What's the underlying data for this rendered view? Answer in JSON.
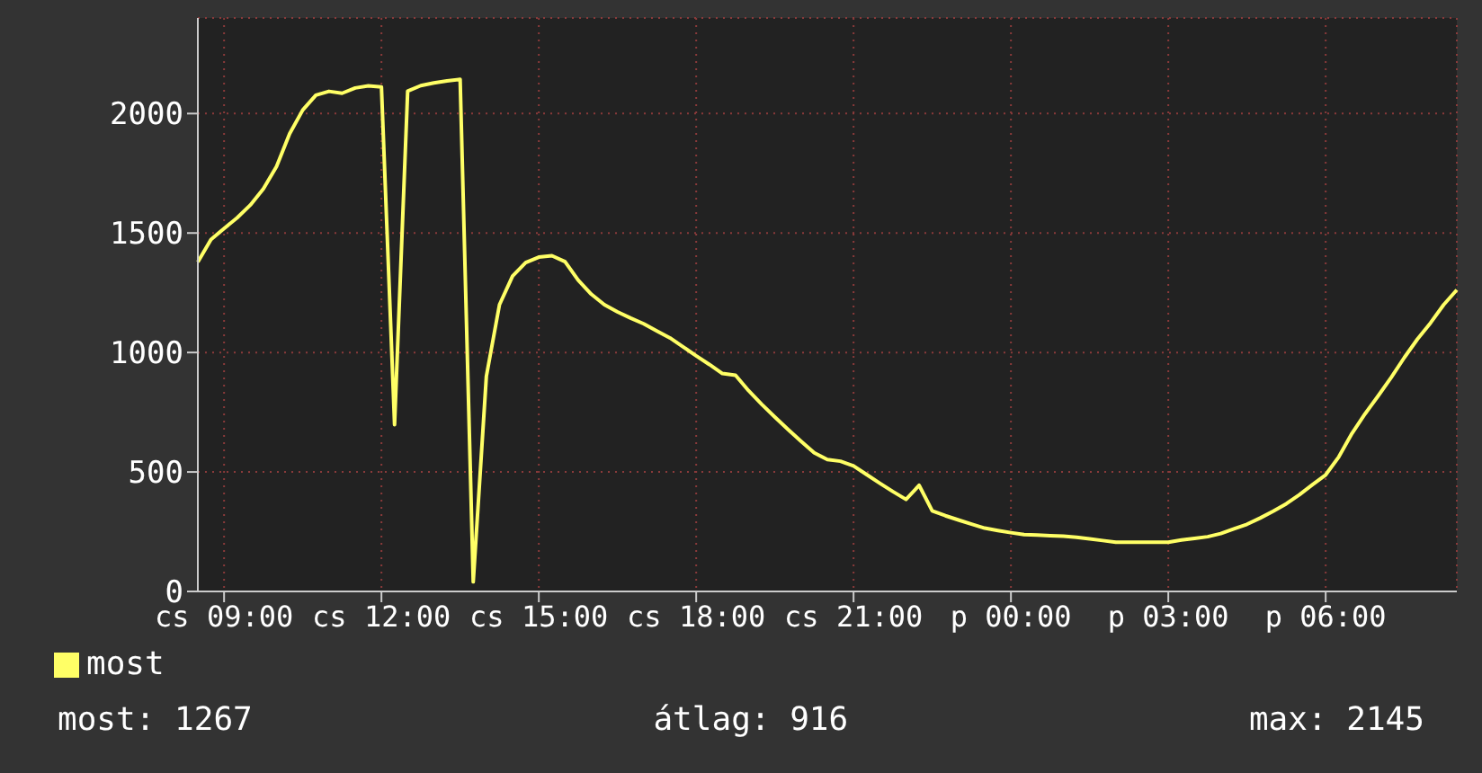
{
  "chart_data": {
    "type": "line",
    "categories": [
      null,
      null,
      "cs 09:00",
      null,
      null,
      null,
      null,
      null,
      null,
      null,
      null,
      null,
      null,
      null,
      "cs 12:00",
      null,
      null,
      null,
      null,
      null,
      null,
      null,
      null,
      null,
      null,
      null,
      "cs 15:00",
      null,
      null,
      null,
      null,
      null,
      null,
      null,
      null,
      null,
      null,
      null,
      "cs 18:00",
      null,
      null,
      null,
      null,
      null,
      null,
      null,
      null,
      null,
      null,
      null,
      "cs 21:00",
      null,
      null,
      null,
      null,
      null,
      null,
      null,
      null,
      null,
      null,
      null,
      "p 00:00",
      null,
      null,
      null,
      null,
      null,
      null,
      null,
      null,
      null,
      null,
      null,
      "p 03:00",
      null,
      null,
      null,
      null,
      null,
      null,
      null,
      null,
      null,
      null,
      null,
      "p 06:00",
      null,
      null,
      null,
      null,
      null,
      null,
      null,
      null,
      null,
      null
    ],
    "series": [
      {
        "name": "most",
        "color": "#ffff66",
        "values": [
          1379,
          1473,
          1519,
          1564,
          1617,
          1685,
          1778,
          1916,
          2015,
          2077,
          2093,
          2085,
          2107,
          2116,
          2111,
          698,
          2094,
          2117,
          2128,
          2137,
          2143,
          40,
          900,
          1200,
          1320,
          1376,
          1399,
          1405,
          1380,
          1303,
          1244,
          1200,
          1170,
          1144,
          1120,
          1090,
          1061,
          1024,
          986,
          950,
          912,
          905,
          840,
          783,
          730,
          678,
          628,
          580,
          552,
          545,
          525,
          489,
          453,
          418,
          385,
          444,
          337,
          317,
          299,
          282,
          265,
          255,
          246,
          238,
          236,
          233,
          231,
          227,
          220,
          213,
          206,
          206,
          206,
          206,
          206,
          215,
          222,
          229,
          242,
          262,
          281,
          307,
          336,
          367,
          405,
          447,
          488,
          563,
          661,
          743,
          818,
          896,
          979,
          1056,
          1124,
          1200,
          1262
        ]
      }
    ],
    "ylim": [
      0,
      2400
    ],
    "yticks": [
      0,
      500,
      1000,
      1500,
      2000
    ],
    "grid": true,
    "legend": "bottom left",
    "marker": "none",
    "line_style": "solid",
    "annotations": [
      "most: 1267",
      "átlag: 916",
      "max: 2145"
    ]
  }
}
